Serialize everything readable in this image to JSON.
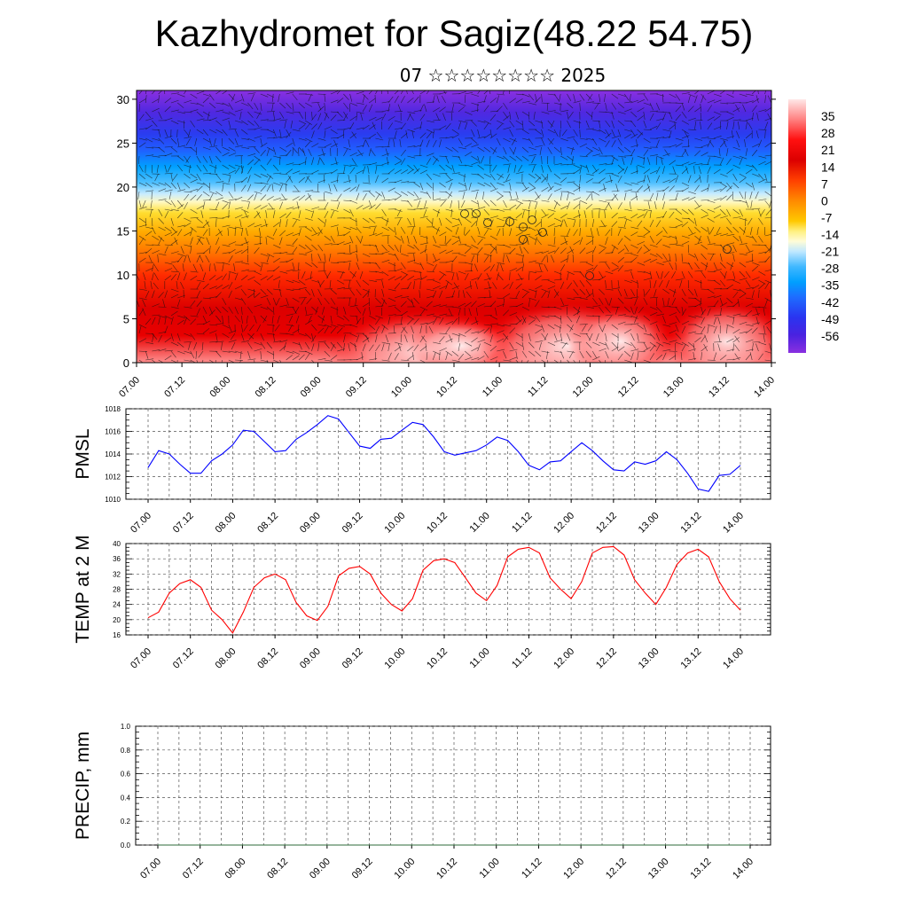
{
  "header": {
    "title": "Kazhydromet for Sagiz(48.22 54.75)",
    "subtitle": "07 ☆☆☆☆☆☆☆☆ 2025"
  },
  "colors": {
    "pmsl_line": "#0000ff",
    "temp_line": "#ff0000",
    "precip_line": "#2e6b3a",
    "colorbar_stops": [
      "#fff0f0",
      "#ff9090",
      "#ff2020",
      "#dc0000",
      "#ff4400",
      "#ff8a00",
      "#ffc000",
      "#fff060",
      "#fffbd0",
      "#d8f0ff",
      "#60c8ff",
      "#00a0ff",
      "#1e6cff",
      "#2a30e0",
      "#5a20e0",
      "#8a28e0"
    ]
  },
  "chart_data": [
    {
      "type": "heatmap",
      "title": "",
      "xlabel": "",
      "ylabel": "",
      "x_tick_labels": [
        "07.00",
        "07.12",
        "08.00",
        "08.12",
        "09.00",
        "09.12",
        "10.00",
        "10.12",
        "11.00",
        "11.12",
        "12.00",
        "12.12",
        "13.00",
        "13.12",
        "14.00"
      ],
      "y_ticks": [
        0,
        5,
        10,
        15,
        20,
        25,
        30
      ],
      "ylim": [
        0,
        31
      ],
      "colorbar_labels": [
        "35",
        "28",
        "21",
        "14",
        "7",
        "0",
        "-7",
        "-14",
        "-21",
        "-28",
        "-35",
        "-42",
        "-49",
        "-56"
      ],
      "colorbar_range": [
        -63,
        42
      ],
      "overlay": "wind barbs"
    },
    {
      "type": "line",
      "ylabel": "PMSL",
      "x_tick_labels": [
        "07.00",
        "07.12",
        "08.00",
        "08.12",
        "09.00",
        "09.12",
        "10.00",
        "10.12",
        "11.00",
        "11.12",
        "12.00",
        "12.12",
        "13.00",
        "13.12",
        "14.00"
      ],
      "y_ticks": [
        "1010",
        "1012",
        "1014",
        "1016",
        "1018"
      ],
      "ylim": [
        1010,
        1018
      ],
      "grid": true,
      "series": [
        {
          "values": [
            1012.8,
            1014.3,
            1014.0,
            1013.1,
            1012.3,
            1012.3,
            1013.4,
            1014.0,
            1014.8,
            1016.1,
            1016.0,
            1015.1,
            1014.2,
            1014.3,
            1015.3,
            1015.9,
            1016.6,
            1017.4,
            1017.1,
            1015.9,
            1014.7,
            1014.5,
            1015.3,
            1015.4,
            1016.1,
            1016.8,
            1016.6,
            1015.5,
            1014.2,
            1013.9,
            1014.1,
            1014.3,
            1014.8,
            1015.5,
            1015.2,
            1014.2,
            1013.0,
            1012.6,
            1013.3,
            1013.4,
            1014.2,
            1015.0,
            1014.3,
            1013.4,
            1012.6,
            1012.5,
            1013.3,
            1013.1,
            1013.4,
            1014.2,
            1013.5,
            1012.3,
            1010.9,
            1010.7,
            1012.1,
            1012.2,
            1013.0
          ]
        }
      ]
    },
    {
      "type": "line",
      "ylabel": "TEMP at 2 M",
      "x_tick_labels": [
        "07.00",
        "07.12",
        "08.00",
        "08.12",
        "09.00",
        "09.12",
        "10.00",
        "10.12",
        "11.00",
        "11.12",
        "12.00",
        "12.12",
        "13.00",
        "13.12",
        "14.00"
      ],
      "y_ticks": [
        "16",
        "20",
        "24",
        "28",
        "32",
        "36",
        "40"
      ],
      "ylim": [
        16,
        40
      ],
      "grid": true,
      "series": [
        {
          "values": [
            20.5,
            22.0,
            27.0,
            29.5,
            30.5,
            28.5,
            22.5,
            20.0,
            16.5,
            22.0,
            28.5,
            31.0,
            32.0,
            30.5,
            24.5,
            21.0,
            19.8,
            23.5,
            31.5,
            33.5,
            34.0,
            32.0,
            27.0,
            24.0,
            22.3,
            25.5,
            33.0,
            35.5,
            36.0,
            35.0,
            31.0,
            27.0,
            25.0,
            29.0,
            36.5,
            38.5,
            39.0,
            37.5,
            31.0,
            28.0,
            25.5,
            30.0,
            37.5,
            39.0,
            39.2,
            37.0,
            30.5,
            27.0,
            24.0,
            28.5,
            34.5,
            37.5,
            38.5,
            36.5,
            30.0,
            25.5,
            22.5
          ]
        }
      ]
    },
    {
      "type": "line",
      "ylabel": "PRECIP, mm",
      "x_tick_labels": [
        "07.00",
        "07.12",
        "08.00",
        "08.12",
        "09.00",
        "09.12",
        "10.00",
        "10.12",
        "11.00",
        "11.12",
        "12.00",
        "12.12",
        "13.00",
        "13.12",
        "14.00"
      ],
      "y_ticks": [
        "0.0",
        "0.2",
        "0.4",
        "0.6",
        "0.8",
        "1.0"
      ],
      "ylim": [
        0,
        1
      ],
      "grid": true,
      "series": [
        {
          "values": [
            0,
            0,
            0,
            0,
            0,
            0,
            0,
            0,
            0,
            0,
            0,
            0,
            0,
            0,
            0,
            0,
            0,
            0,
            0,
            0,
            0,
            0,
            0,
            0,
            0,
            0,
            0,
            0,
            0,
            0,
            0,
            0,
            0,
            0,
            0,
            0,
            0,
            0,
            0,
            0,
            0,
            0,
            0,
            0,
            0,
            0,
            0,
            0,
            0,
            0,
            0,
            0,
            0,
            0,
            0,
            0,
            0
          ]
        }
      ]
    }
  ]
}
